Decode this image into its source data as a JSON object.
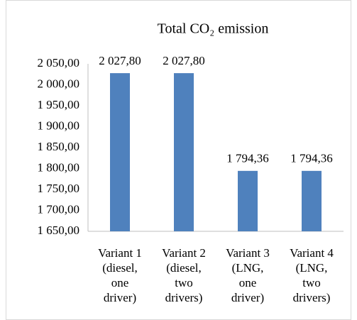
{
  "chart_data": {
    "type": "bar",
    "title": "Total CO₂ emission",
    "categories": [
      "Variant 1 (diesel, one driver)",
      "Variant 2 (diesel, two drivers)",
      "Variant 3 (LNG, one driver)",
      "Variant 4 (LNG, two drivers)"
    ],
    "values": [
      2027.8,
      2027.8,
      1794.36,
      1794.36
    ],
    "value_labels": [
      "2 027,80",
      "2 027,80",
      "1 794,36",
      "1 794,36"
    ],
    "color": "#4f81bd",
    "ylim": [
      1650,
      2050
    ],
    "yticks": [
      {
        "value": 1650,
        "label": "1 650,00"
      },
      {
        "value": 1700,
        "label": "1 700,00"
      },
      {
        "value": 1750,
        "label": "1 750,00"
      },
      {
        "value": 1800,
        "label": "1 800,00"
      },
      {
        "value": 1850,
        "label": "1 850,00"
      },
      {
        "value": 1900,
        "label": "1 900,00"
      },
      {
        "value": 1950,
        "label": "1 950,00"
      },
      {
        "value": 2000,
        "label": "2 000,00"
      },
      {
        "value": 2050,
        "label": "2 050,00"
      }
    ],
    "grid": false
  }
}
